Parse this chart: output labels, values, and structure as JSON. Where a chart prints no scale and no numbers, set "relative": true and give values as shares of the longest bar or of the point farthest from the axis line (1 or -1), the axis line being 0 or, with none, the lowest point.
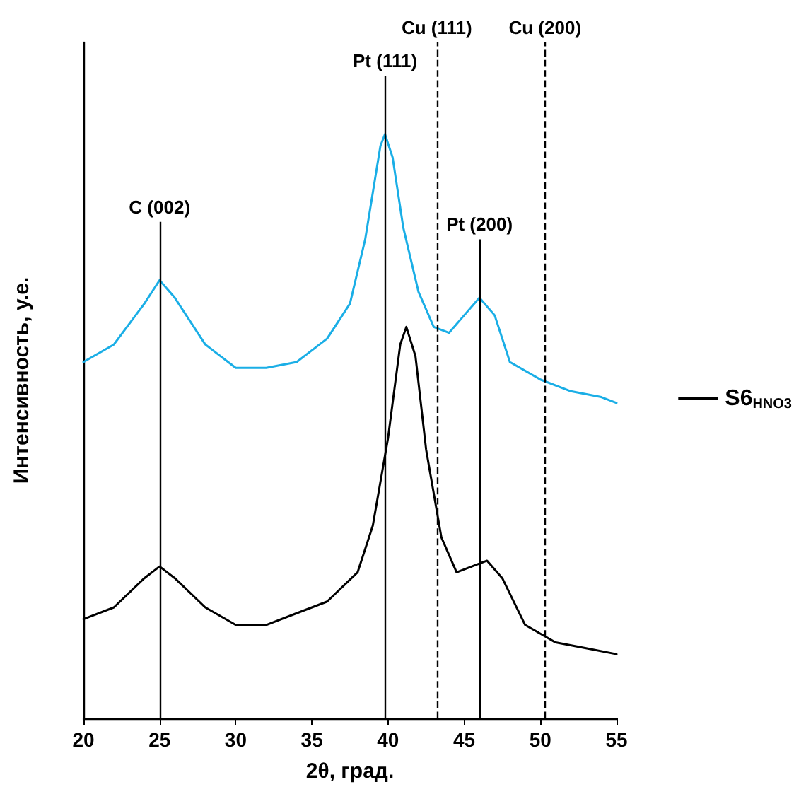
{
  "chart_data": {
    "type": "line",
    "xlabel": "2θ, град.",
    "ylabel": "Интенсивность, у.е.",
    "relative": true,
    "xlim": [
      20,
      55
    ],
    "xticks": [
      20,
      25,
      30,
      35,
      40,
      45,
      50,
      55
    ],
    "grid": false,
    "legend": "right",
    "marker": "none",
    "line_style": "solid",
    "series": [
      {
        "color": "#1aaee6",
        "x": [
          20,
          22,
          24,
          25,
          26,
          28,
          30,
          32,
          34,
          36,
          37.5,
          38.5,
          39.5,
          39.8,
          40.3,
          41,
          42,
          43,
          44,
          45,
          46,
          47,
          48,
          50,
          52,
          54,
          55
        ],
        "values": [
          0.61,
          0.64,
          0.71,
          0.75,
          0.72,
          0.64,
          0.6,
          0.6,
          0.61,
          0.65,
          0.71,
          0.82,
          0.98,
          1,
          0.96,
          0.84,
          0.73,
          0.67,
          0.66,
          0.69,
          0.72,
          0.69,
          0.61,
          0.58,
          0.56,
          0.55,
          0.54
        ]
      },
      {
        "name": "S6$_{HNO3}$",
        "color": "#000000",
        "x": [
          20,
          22,
          24,
          25,
          26,
          28,
          30,
          32,
          34,
          36,
          38,
          39,
          40,
          40.8,
          41.2,
          41.8,
          42.5,
          43.5,
          44.5,
          45.5,
          46.5,
          47.5,
          49,
          51,
          53,
          55
        ],
        "values": [
          0.17,
          0.19,
          0.24,
          0.26,
          0.24,
          0.19,
          0.16,
          0.16,
          0.18,
          0.2,
          0.25,
          0.33,
          0.48,
          0.64,
          0.67,
          0.62,
          0.46,
          0.31,
          0.25,
          0.26,
          0.27,
          0.24,
          0.16,
          0.13,
          0.12,
          0.11
        ]
      }
    ],
    "ref_lines": [
      {
        "axis": "x",
        "value": 25,
        "label": "C (002)",
        "color": "#000000",
        "line_style": "solid"
      },
      {
        "axis": "x",
        "value": 39.8,
        "label": "Pt (111)",
        "color": "#000000",
        "line_style": "solid"
      },
      {
        "axis": "x",
        "value": 43.2,
        "label": "Cu (111)",
        "color": "#000000",
        "line_style": "dashed"
      },
      {
        "axis": "x",
        "value": 46,
        "label": "Pt (200)",
        "color": "#000000",
        "line_style": "solid"
      },
      {
        "axis": "x",
        "value": 50.3,
        "label": "Cu (200)",
        "color": "#000000",
        "line_style": "dashed"
      }
    ]
  }
}
